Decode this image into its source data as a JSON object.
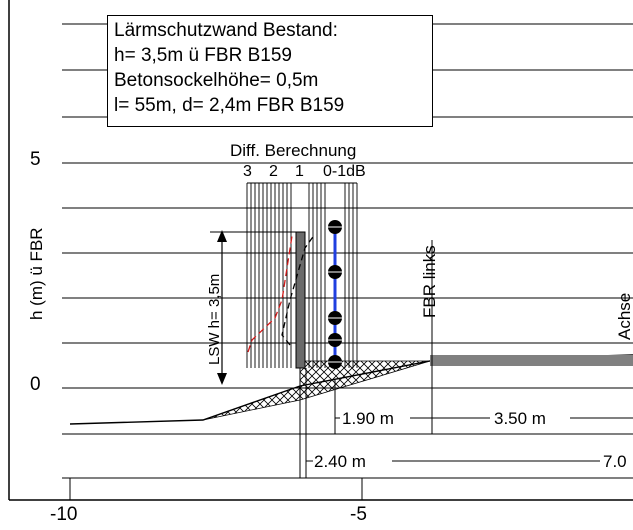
{
  "info_box": {
    "line1": "Lärmschutzwand Bestand:",
    "line2": "h= 3,5m ü FBR B159",
    "line3": "Betonsockelhöhe= 0,5m",
    "line4": "l= 55m, d= 2,4m FBR B159"
  },
  "axis": {
    "ylabel": "h (m) ü FBR",
    "y_ticks": [
      {
        "value": 5,
        "label": "5"
      },
      {
        "value": 0,
        "label": "0"
      }
    ],
    "x_ticks": [
      {
        "value": -10,
        "label": "-10"
      },
      {
        "value": -5,
        "label": "-5"
      }
    ]
  },
  "annotations": {
    "diff_title": "Diff. Berechnung",
    "diff_markers": [
      "3",
      "2",
      "1",
      "0-1dB"
    ],
    "lsw_height": "LSW h= 3,5m",
    "fbr_links": "FBR links",
    "achse": "Achse",
    "dim_190": "1.90 m",
    "dim_350": "3.50 m",
    "dim_240": "2.40 m",
    "dim_70": "7.0"
  },
  "colors": {
    "receiver_line": "#1f3fe0",
    "curve_red": "#d11b1b",
    "grid": "#000000",
    "road": "#808080"
  }
}
